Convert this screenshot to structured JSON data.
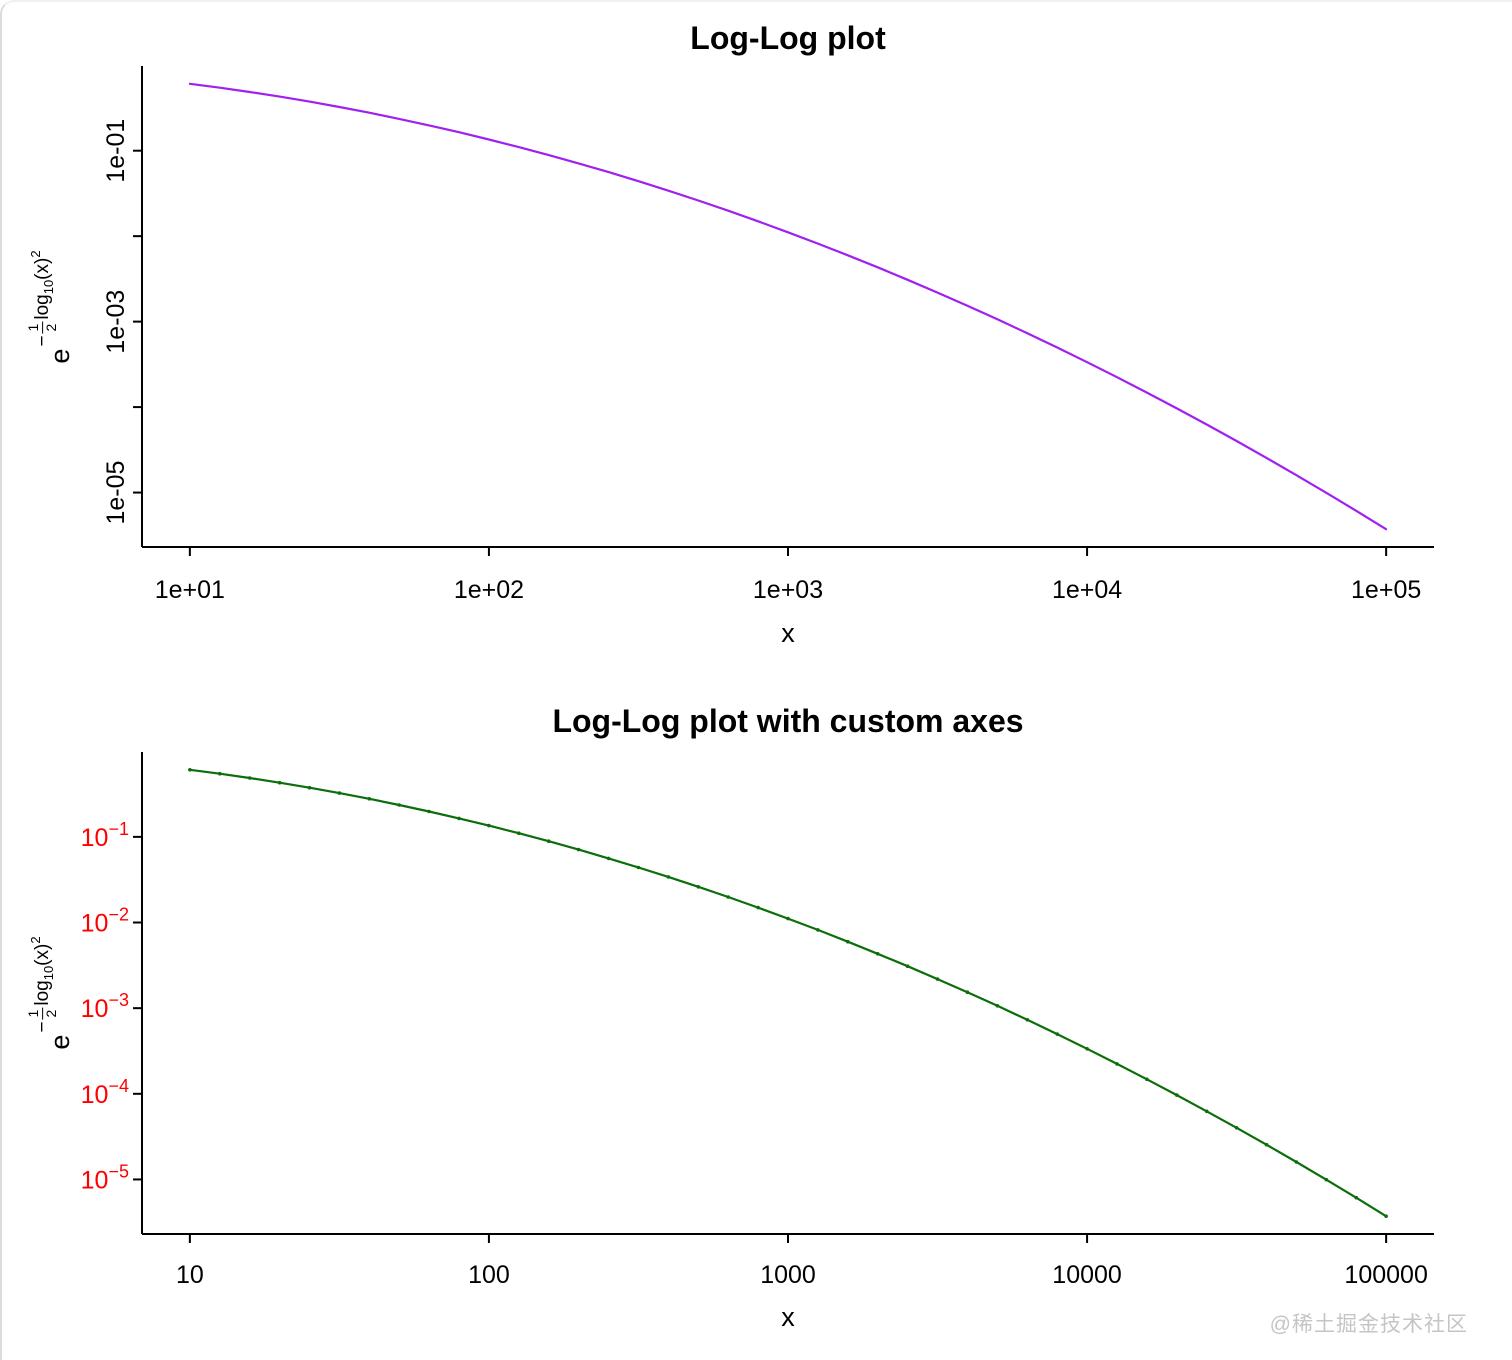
{
  "page": {
    "background": "#ffffff",
    "watermark": "@稀土掘金技术社区"
  },
  "formula": {
    "base": "e",
    "minus": "−",
    "num": "1",
    "den": "2",
    "func": "log",
    "sub": "10",
    "arg": "(x)",
    "pow": "2"
  },
  "chart_data": [
    {
      "type": "line",
      "title": "Log-Log plot",
      "xlabel": "x",
      "ylabel": "e^(−(1/2)·log10(x)^2)",
      "xscale": "log",
      "yscale": "log",
      "grid": false,
      "legend": "none",
      "line_color": "#A020F0",
      "markers": false,
      "xrange": [
        10,
        100000
      ],
      "yrange": [
        3.7e-06,
        0.61
      ],
      "xlim_log10": [
        0.84,
        5.16
      ],
      "ylim_log10": [
        -5.637,
        -0.009
      ],
      "xticks": {
        "values": [
          10,
          100,
          1000,
          10000,
          100000
        ],
        "labels": [
          "1e+01",
          "1e+02",
          "1e+03",
          "1e+04",
          "1e+05"
        ]
      },
      "yticks": {
        "exponents": [
          -1,
          -2,
          -3,
          -4,
          -5
        ],
        "labels": [
          "1e-01",
          "",
          "1e-03",
          "",
          "1e-05"
        ],
        "label_color": "#000000"
      },
      "x": [
        10,
        12.59,
        15.85,
        19.95,
        25.12,
        31.62,
        39.81,
        50.12,
        63.1,
        79.43,
        100,
        125.9,
        158.5,
        199.5,
        251.2,
        316.2,
        398.1,
        501.2,
        631,
        794.3,
        1000,
        1259,
        1585,
        1995,
        2512,
        3162,
        3981,
        5012,
        6310,
        7943,
        10000,
        12590,
        15850,
        19950,
        25120,
        31620,
        39810,
        50120,
        63100,
        79430,
        100000
      ],
      "y": [
        0.6065,
        0.5461,
        0.4868,
        0.4296,
        0.3753,
        0.3247,
        0.278,
        0.2357,
        0.1979,
        0.1645,
        0.1353,
        0.1103,
        0.08892,
        0.07101,
        0.05613,
        0.04394,
        0.03405,
        0.02612,
        0.01984,
        0.01492,
        0.01111,
        0.008189,
        0.005976,
        0.004318,
        0.003089,
        0.002187,
        0.001534,
        0.001065,
        0.0007318,
        0.000498,
        0.0003355,
        0.0002237,
        0.0001477,
        9.659e-05,
        6.252e-05,
        4.007e-05,
        2.542e-05,
        1.597e-05,
        9.929e-06,
        6.114e-06,
        3.727e-06
      ]
    },
    {
      "type": "line",
      "title": "Log-Log plot with custom axes",
      "xlabel": "x",
      "ylabel": "e^(−(1/2)·log10(x)^2)",
      "xscale": "log",
      "yscale": "log",
      "grid": false,
      "legend": "none",
      "line_color": "#0B6E0B",
      "markers": true,
      "xrange": [
        10,
        100000
      ],
      "yrange": [
        3.7e-06,
        0.61
      ],
      "xlim_log10": [
        0.84,
        5.16
      ],
      "ylim_log10": [
        -5.637,
        -0.009
      ],
      "xticks": {
        "values": [
          10,
          100,
          1000,
          10000,
          100000
        ],
        "labels": [
          "10",
          "100",
          "1000",
          "10000",
          "100000"
        ]
      },
      "yticks": {
        "exponents": [
          -1,
          -2,
          -3,
          -4,
          -5
        ],
        "base": "10",
        "exponent_labels": [
          "−1",
          "−2",
          "−3",
          "−4",
          "−5"
        ],
        "label_color": "#FF0000"
      },
      "x": [
        10,
        12.59,
        15.85,
        19.95,
        25.12,
        31.62,
        39.81,
        50.12,
        63.1,
        79.43,
        100,
        125.9,
        158.5,
        199.5,
        251.2,
        316.2,
        398.1,
        501.2,
        631,
        794.3,
        1000,
        1259,
        1585,
        1995,
        2512,
        3162,
        3981,
        5012,
        6310,
        7943,
        10000,
        12590,
        15850,
        19950,
        25120,
        31620,
        39810,
        50120,
        63100,
        79430,
        100000
      ],
      "y": [
        0.6065,
        0.5461,
        0.4868,
        0.4296,
        0.3753,
        0.3247,
        0.278,
        0.2357,
        0.1979,
        0.1645,
        0.1353,
        0.1103,
        0.08892,
        0.07101,
        0.05613,
        0.04394,
        0.03405,
        0.02612,
        0.01984,
        0.01492,
        0.01111,
        0.008189,
        0.005976,
        0.004318,
        0.003089,
        0.002187,
        0.001534,
        0.001065,
        0.0007318,
        0.000498,
        0.0003355,
        0.0002237,
        0.0001477,
        9.659e-05,
        6.252e-05,
        4.007e-05,
        2.542e-05,
        1.597e-05,
        9.929e-06,
        6.114e-06,
        3.727e-06
      ]
    }
  ]
}
